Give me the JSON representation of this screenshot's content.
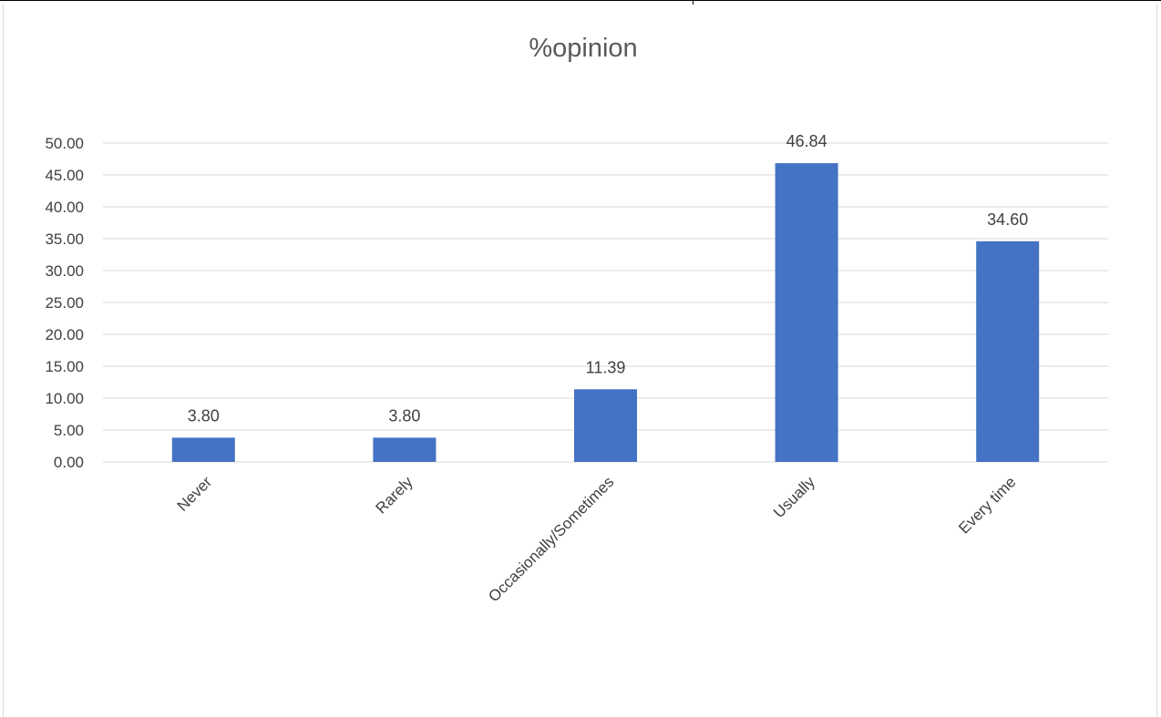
{
  "chart_data": {
    "type": "bar",
    "title": "%opinion",
    "xlabel": "",
    "ylabel": "",
    "categories": [
      "Never",
      "Rarely",
      "Occasionally/Sometimes",
      "Usually",
      "Every time"
    ],
    "series": [
      {
        "values": [
          3.8,
          3.8,
          11.39,
          46.84,
          34.6
        ],
        "data_labels": [
          "3.80",
          "3.80",
          "11.39",
          "46.84",
          "34.60"
        ]
      }
    ],
    "ylim": [
      0,
      50
    ],
    "y_ticks": [
      "0.00",
      "5.00",
      "10.00",
      "15.00",
      "20.00",
      "25.00",
      "30.00",
      "35.00",
      "40.00",
      "45.00",
      "50.00"
    ],
    "grid": true,
    "legend": "none",
    "colors": {
      "bar": "#4472c4",
      "gridline": "#d9d9d9",
      "axis_text": "#404040",
      "title": "#595959"
    }
  }
}
